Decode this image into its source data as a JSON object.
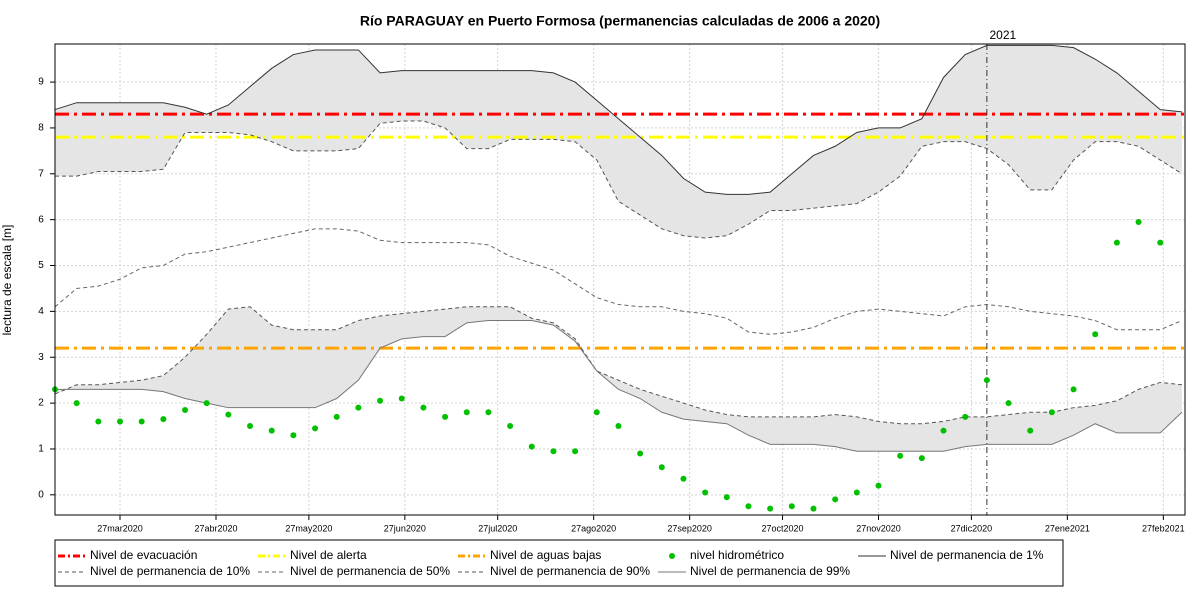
{
  "chart_data": {
    "type": "line",
    "title": "Río PARAGUAY en Puerto Formosa (permanencias calculadas de 2006 a 2020)",
    "ylabel": "lectura de escala [m]",
    "x": [
      "2020-03-06",
      "2020-03-13",
      "2020-03-20",
      "2020-03-27",
      "2020-04-03",
      "2020-04-10",
      "2020-04-17",
      "2020-04-24",
      "2020-05-01",
      "2020-05-08",
      "2020-05-15",
      "2020-05-22",
      "2020-05-29",
      "2020-06-05",
      "2020-06-12",
      "2020-06-19",
      "2020-06-26",
      "2020-07-03",
      "2020-07-10",
      "2020-07-17",
      "2020-07-24",
      "2020-07-31",
      "2020-08-07",
      "2020-08-14",
      "2020-08-21",
      "2020-08-28",
      "2020-09-04",
      "2020-09-11",
      "2020-09-18",
      "2020-09-25",
      "2020-10-02",
      "2020-10-09",
      "2020-10-16",
      "2020-10-23",
      "2020-10-30",
      "2020-11-06",
      "2020-11-13",
      "2020-11-20",
      "2020-11-27",
      "2020-12-04",
      "2020-12-11",
      "2020-12-18",
      "2020-12-25",
      "2021-01-01",
      "2021-01-08",
      "2021-01-15",
      "2021-01-22",
      "2021-01-29",
      "2021-02-05",
      "2021-02-12",
      "2021-02-19",
      "2021-02-26",
      "2021-03-05"
    ],
    "xlim": [
      "2020-03-06",
      "2021-03-06"
    ],
    "xticks": [
      {
        "value": "2020-03-27",
        "label": "27mar2020"
      },
      {
        "value": "2020-04-27",
        "label": "27abr2020"
      },
      {
        "value": "2020-05-27",
        "label": "27may2020"
      },
      {
        "value": "2020-06-27",
        "label": "27jun2020"
      },
      {
        "value": "2020-07-27",
        "label": "27jul2020"
      },
      {
        "value": "2020-08-27",
        "label": "27ago2020"
      },
      {
        "value": "2020-09-27",
        "label": "27sep2020"
      },
      {
        "value": "2020-10-27",
        "label": "27oct2020"
      },
      {
        "value": "2020-11-27",
        "label": "27nov2020"
      },
      {
        "value": "2020-12-27",
        "label": "27dic2020"
      },
      {
        "value": "2021-01-27",
        "label": "27ene2021"
      },
      {
        "value": "2021-02-27",
        "label": "27feb2021"
      }
    ],
    "ylim": [
      -0.44,
      9.83
    ],
    "yticks": [
      0,
      1,
      2,
      3,
      4,
      5,
      6,
      7,
      8,
      9
    ],
    "grid": true,
    "vline": {
      "x": "2021-01-01",
      "label": "2021"
    },
    "band_color": "#e5e5e5",
    "hlines": [
      {
        "name": "Nivel de evacuación",
        "value": 8.3,
        "color": "#ff0000"
      },
      {
        "name": "Nivel de alerta",
        "value": 7.8,
        "color": "#ffff00"
      },
      {
        "name": "Nivel de aguas bajas",
        "value": 3.2,
        "color": "#ffa500"
      }
    ],
    "series": [
      {
        "name": "nivel hidrométrico",
        "color": "#00c000",
        "style": "points",
        "values": [
          2.3,
          2.0,
          1.6,
          1.6,
          1.6,
          1.65,
          1.85,
          2.0,
          1.75,
          1.5,
          1.4,
          1.3,
          1.45,
          1.7,
          1.9,
          2.05,
          2.1,
          1.9,
          1.7,
          1.8,
          1.8,
          1.5,
          1.05,
          0.95,
          0.95,
          1.8,
          1.5,
          0.9,
          0.6,
          0.35,
          0.05,
          -0.05,
          -0.25,
          -0.3,
          -0.25,
          -0.3,
          -0.1,
          0.05,
          0.2,
          0.85,
          0.8,
          1.4,
          1.7,
          2.5,
          2.0,
          1.4,
          1.8,
          2.3,
          3.5,
          5.5,
          5.95,
          5.5,
          null
        ]
      },
      {
        "name": "Nivel de permanencia de 1%",
        "color": "#333333",
        "style": "solid",
        "values": [
          8.4,
          8.55,
          8.55,
          8.55,
          8.55,
          8.55,
          8.45,
          8.3,
          8.5,
          8.9,
          9.3,
          9.6,
          9.7,
          9.7,
          9.7,
          9.2,
          9.25,
          9.25,
          9.25,
          9.25,
          9.25,
          9.25,
          9.25,
          9.2,
          9.0,
          8.6,
          8.2,
          7.8,
          7.4,
          6.9,
          6.6,
          6.55,
          6.55,
          6.6,
          7.0,
          7.4,
          7.6,
          7.9,
          8.0,
          8.0,
          8.2,
          9.1,
          9.6,
          9.8,
          9.8,
          9.8,
          9.8,
          9.75,
          9.5,
          9.2,
          8.8,
          8.4,
          8.35
        ]
      },
      {
        "name": "Nivel de permanencia de 10%",
        "color": "#555555",
        "style": "dashed",
        "values": [
          6.95,
          6.95,
          7.05,
          7.05,
          7.05,
          7.1,
          7.9,
          7.9,
          7.9,
          7.85,
          7.7,
          7.5,
          7.5,
          7.5,
          7.55,
          8.1,
          8.15,
          8.15,
          8.0,
          7.55,
          7.55,
          7.75,
          7.75,
          7.75,
          7.7,
          7.3,
          6.4,
          6.1,
          5.8,
          5.65,
          5.6,
          5.65,
          5.9,
          6.2,
          6.2,
          6.25,
          6.3,
          6.35,
          6.6,
          6.95,
          7.6,
          7.7,
          7.7,
          7.55,
          7.2,
          6.65,
          6.65,
          7.3,
          7.7,
          7.7,
          7.6,
          7.3,
          7.0
        ]
      },
      {
        "name": "Nivel de permanencia de 50%",
        "color": "#666666",
        "style": "dashed",
        "values": [
          4.1,
          4.5,
          4.55,
          4.7,
          4.95,
          5.0,
          5.25,
          5.3,
          5.4,
          5.5,
          5.6,
          5.7,
          5.8,
          5.8,
          5.75,
          5.55,
          5.5,
          5.5,
          5.5,
          5.5,
          5.45,
          5.2,
          5.05,
          4.9,
          4.6,
          4.3,
          4.15,
          4.1,
          4.1,
          4.0,
          3.95,
          3.85,
          3.55,
          3.5,
          3.55,
          3.65,
          3.85,
          4.0,
          4.05,
          4.0,
          3.95,
          3.9,
          4.1,
          4.15,
          4.1,
          4.0,
          3.95,
          3.9,
          3.8,
          3.6,
          3.6,
          3.6,
          3.8
        ]
      },
      {
        "name": "Nivel de permanencia de 90%",
        "color": "#555555",
        "style": "dashed",
        "values": [
          2.2,
          2.4,
          2.4,
          2.45,
          2.5,
          2.6,
          3.0,
          3.5,
          4.05,
          4.1,
          3.7,
          3.6,
          3.6,
          3.6,
          3.8,
          3.9,
          3.95,
          4.0,
          4.05,
          4.1,
          4.1,
          4.1,
          3.85,
          3.75,
          3.4,
          2.7,
          2.5,
          2.3,
          2.15,
          2.0,
          1.85,
          1.75,
          1.7,
          1.7,
          1.7,
          1.7,
          1.75,
          1.7,
          1.6,
          1.55,
          1.55,
          1.6,
          1.7,
          1.7,
          1.75,
          1.8,
          1.8,
          1.9,
          1.95,
          2.05,
          2.3,
          2.45,
          2.4
        ]
      },
      {
        "name": "Nivel de permanencia de 99%",
        "color": "#777777",
        "style": "solid",
        "values": [
          2.3,
          2.3,
          2.3,
          2.3,
          2.3,
          2.25,
          2.1,
          2.0,
          1.9,
          1.9,
          1.9,
          1.9,
          1.9,
          2.1,
          2.5,
          3.2,
          3.4,
          3.45,
          3.45,
          3.75,
          3.8,
          3.8,
          3.8,
          3.7,
          3.35,
          2.7,
          2.3,
          2.1,
          1.8,
          1.65,
          1.6,
          1.55,
          1.3,
          1.1,
          1.1,
          1.1,
          1.05,
          0.95,
          0.95,
          0.95,
          0.95,
          0.95,
          1.05,
          1.1,
          1.1,
          1.1,
          1.1,
          1.3,
          1.55,
          1.35,
          1.35,
          1.35,
          1.8
        ]
      }
    ]
  }
}
